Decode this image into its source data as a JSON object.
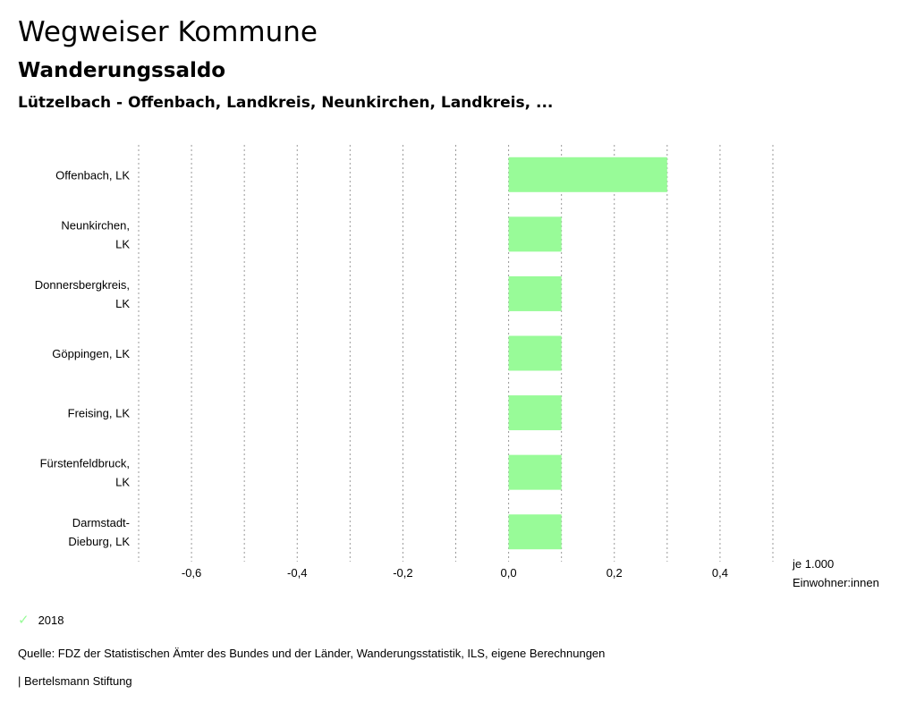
{
  "header": {
    "title": "Wegweiser Kommune",
    "subtitle": "Wanderungssaldo",
    "description": "Lützelbach - Offenbach, Landkreis, Neunkirchen, Landkreis, ..."
  },
  "chart_data": {
    "type": "bar",
    "orientation": "horizontal",
    "categories": [
      [
        "Offenbach, LK"
      ],
      [
        "Neunkirchen,",
        "LK"
      ],
      [
        "Donnersbergkreis,",
        "LK"
      ],
      [
        "Göppingen, LK"
      ],
      [
        "Freising, LK"
      ],
      [
        "Fürstenfeldbruck,",
        "LK"
      ],
      [
        "Darmstadt-",
        "Dieburg, LK"
      ]
    ],
    "series": [
      {
        "name": "2018",
        "values": [
          0.3,
          0.1,
          0.1,
          0.1,
          0.1,
          0.1,
          0.1
        ],
        "color": "#98fb98"
      }
    ],
    "xlim": [
      -0.7,
      0.5
    ],
    "xticks": [
      -0.6,
      -0.4,
      -0.2,
      0.0,
      0.2,
      0.4
    ],
    "xtick_labels": [
      "-0,6",
      "-0,4",
      "-0,2",
      "0,0",
      "0,2",
      "0,4"
    ],
    "gridlines_at": [
      -0.7,
      -0.6,
      -0.5,
      -0.4,
      -0.3,
      -0.2,
      -0.1,
      0.0,
      0.1,
      0.2,
      0.3,
      0.4,
      0.5
    ],
    "unit_label": [
      "je 1.000",
      "Einwohner:innen"
    ],
    "grid": true,
    "legend_position": "bottom-left"
  },
  "legend": {
    "items": [
      {
        "label": "2018",
        "icon": "check-icon",
        "color": "#98fb98"
      }
    ]
  },
  "footer": {
    "source": "Quelle: FDZ der Statistischen Ämter des Bundes und der Länder, Wanderungsstatistik, ILS, eigene Berechnungen",
    "publisher": "| Bertelsmann Stiftung"
  }
}
